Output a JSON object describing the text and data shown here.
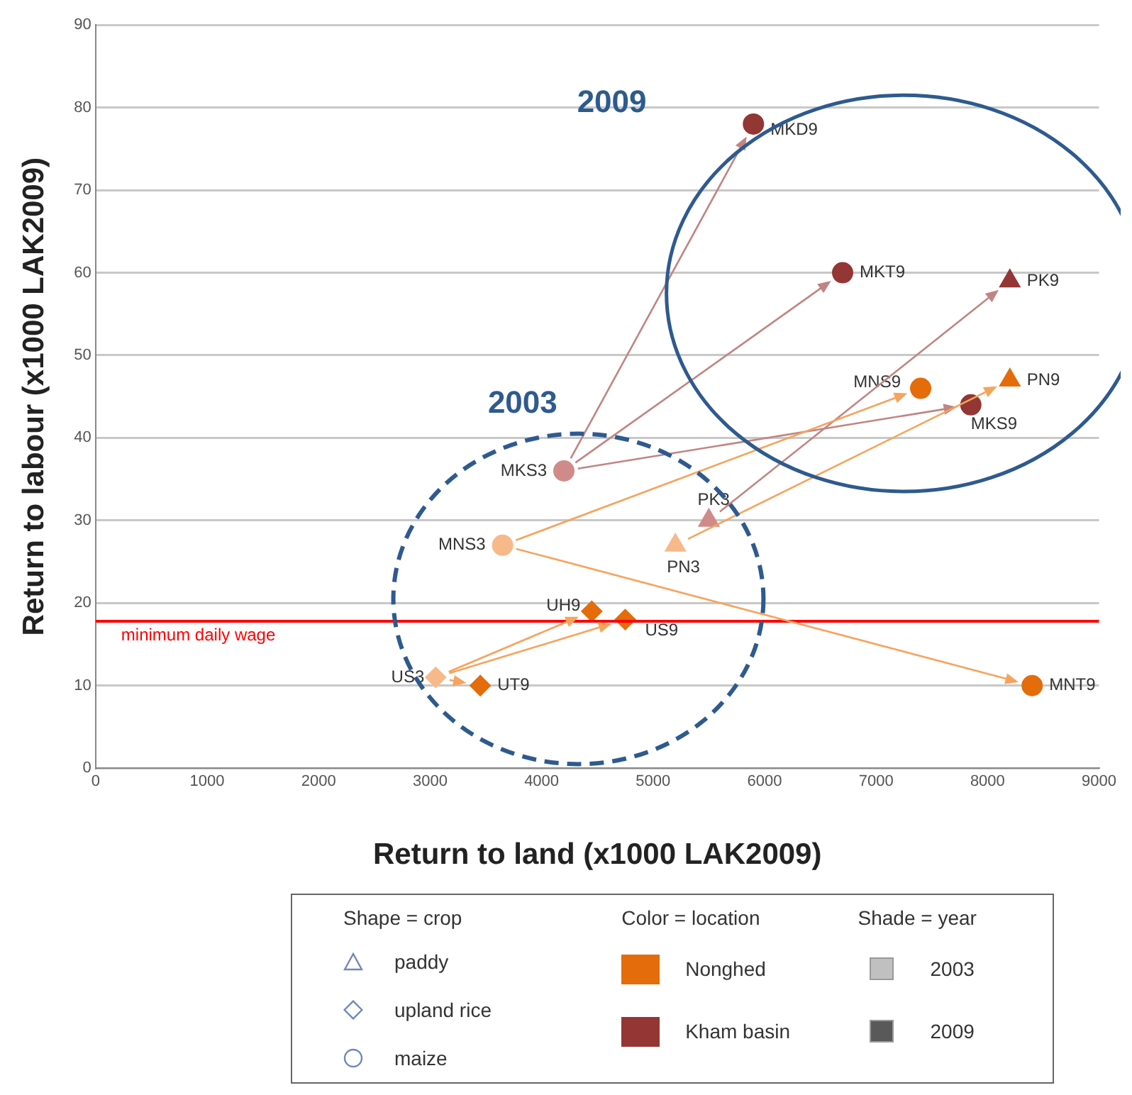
{
  "chart_data": {
    "type": "scatter",
    "xlabel": "Return to land (x1000 LAK2009)",
    "ylabel": "Return to labour (x1000 LAK2009)",
    "xlim": [
      0,
      9000
    ],
    "xticks": [
      0,
      1000,
      2000,
      3000,
      4000,
      5000,
      6000,
      7000,
      8000,
      9000
    ],
    "ylim": [
      0,
      90
    ],
    "yticks": [
      0,
      10,
      20,
      30,
      40,
      50,
      60,
      70,
      80,
      90
    ],
    "grid": "y",
    "legend": false,
    "ref_lines": [
      {
        "axis": "y",
        "value": 17.8,
        "label": "minimum daily wage",
        "color": "#ff0000"
      }
    ],
    "series": [
      {
        "marker": "circle",
        "color": "#f8b98a",
        "x": [
          3650
        ],
        "values": [
          27
        ]
      },
      {
        "marker": "triangle",
        "color": "#f8b98a",
        "x": [
          5200
        ],
        "values": [
          27
        ]
      },
      {
        "marker": "diamond",
        "color": "#f8b98a",
        "x": [
          3050
        ],
        "values": [
          11
        ]
      },
      {
        "marker": "circle",
        "color": "#d08a8a",
        "x": [
          4200
        ],
        "values": [
          36
        ]
      },
      {
        "marker": "triangle",
        "color": "#d08a8a",
        "x": [
          5500
        ],
        "values": [
          30
        ]
      },
      {
        "marker": "circle",
        "color": "#e46c0a",
        "x": [
          7400,
          8400
        ],
        "values": [
          46,
          10
        ]
      },
      {
        "marker": "triangle",
        "color": "#e46c0a",
        "x": [
          8200
        ],
        "values": [
          47
        ]
      },
      {
        "marker": "diamond",
        "color": "#e46c0a",
        "x": [
          4450,
          4750,
          3450
        ],
        "values": [
          19,
          18,
          10
        ]
      },
      {
        "marker": "circle",
        "color": "#943634",
        "x": [
          5900,
          6700,
          7850
        ],
        "values": [
          78,
          60,
          44
        ]
      },
      {
        "marker": "triangle",
        "color": "#943634",
        "x": [
          8200
        ],
        "values": [
          59
        ]
      }
    ],
    "annotations": [
      "2009",
      "2003",
      "Shape = crop",
      "paddy",
      "upland rice",
      "maize",
      "Color = location",
      "Nonghed",
      "Kham basin",
      "Shade = year",
      "2003",
      "2009",
      {
        "text": "MKD9",
        "x": 5900,
        "y": 78
      },
      {
        "text": "MKT9",
        "x": 6700,
        "y": 60
      },
      {
        "text": "PK9",
        "x": 8200,
        "y": 59
      },
      {
        "text": "MNS9",
        "x": 7400,
        "y": 46
      },
      {
        "text": "PN9",
        "x": 8200,
        "y": 47
      },
      {
        "text": "MKS9",
        "x": 7850,
        "y": 44
      },
      {
        "text": "MKS3",
        "x": 4200,
        "y": 36
      },
      {
        "text": "PK3",
        "x": 5500,
        "y": 30
      },
      {
        "text": "PN3",
        "x": 5200,
        "y": 27
      },
      {
        "text": "MNS3",
        "x": 3650,
        "y": 27
      },
      {
        "text": "UH9",
        "x": 4450,
        "y": 19
      },
      {
        "text": "US9",
        "x": 4750,
        "y": 18
      },
      {
        "text": "US3",
        "x": 3050,
        "y": 11
      },
      {
        "text": "UT9",
        "x": 3450,
        "y": 10
      },
      {
        "text": "MNT9",
        "x": 8400,
        "y": 10
      }
    ]
  }
}
